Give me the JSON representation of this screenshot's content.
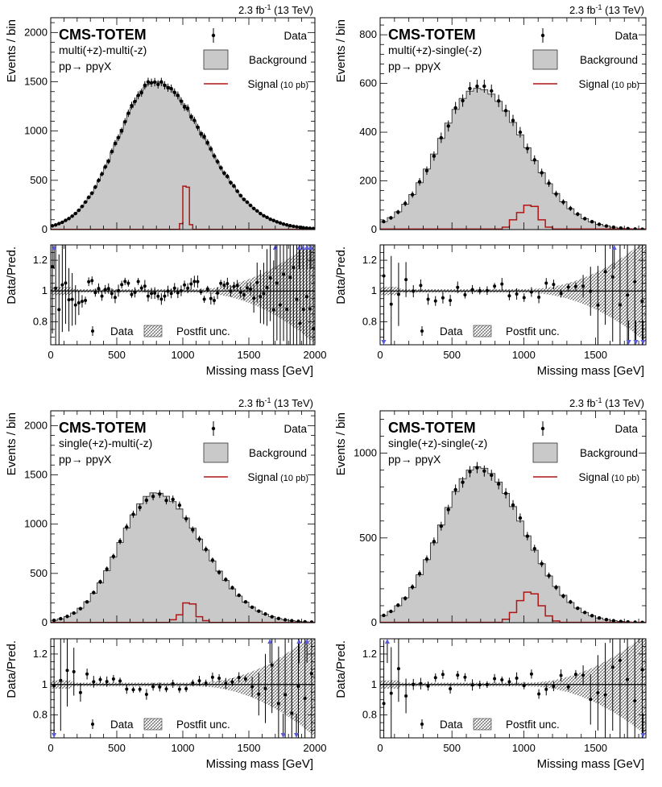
{
  "common": {
    "experiment": "CMS-TOTEM",
    "process": "pp→ ppγX",
    "lumi_main": "2.3 fb",
    "lumi_exp": "-1",
    "lumi_energy": "(13 TeV)",
    "xlabel": "Missing mass [GeV]",
    "ylabel_top": "Events / bin",
    "ylabel_ratio": "Data/Pred.",
    "legend": {
      "data": "Data",
      "background": "Background",
      "signal": "Signal",
      "signal_note": "(10 pb)",
      "ratio_data": "Data",
      "postfit": "Postfit unc."
    },
    "colors": {
      "background": "#c9c9c9",
      "signal": "#b01515",
      "arrow": "#5b5bd6",
      "data": "#000000"
    }
  },
  "chart_data": [
    {
      "type": "bar",
      "title": "multi(+z)-multi(-z)",
      "xlim": [
        0,
        2000
      ],
      "ylim": [
        0,
        2150
      ],
      "xticks": [
        0,
        500,
        1000,
        1500,
        2000
      ],
      "yticks": [
        0,
        500,
        1000,
        1500,
        2000
      ],
      "ratio_ylim": [
        0.65,
        1.3
      ],
      "ratio_yticks": [
        0.8,
        1,
        1.2
      ],
      "bin_width": 25,
      "background": {
        "mean": 790,
        "sigma": 330,
        "peak": 1500,
        "rise": 1.15
      },
      "signal": {
        "start": 975,
        "width": 25,
        "values": [
          60,
          440,
          430,
          50
        ]
      },
      "data_scatter": 0.02,
      "ratio_points": 80,
      "ratio_band_growth": 0.33,
      "ratio_arrows_up": [
        25,
        1700,
        1880,
        1910,
        1940,
        1970
      ],
      "ratio_arrows_down": []
    },
    {
      "type": "bar",
      "title": "multi(+z)-single(-z)",
      "xlim": [
        0,
        1850
      ],
      "ylim": [
        0,
        870
      ],
      "xticks": [
        0,
        500,
        1000,
        1500
      ],
      "yticks": [
        0,
        200,
        400,
        600,
        800
      ],
      "ratio_ylim": [
        0.65,
        1.3
      ],
      "ratio_yticks": [
        0.8,
        1,
        1.2
      ],
      "bin_width": 50,
      "background": {
        "mean": 680,
        "sigma": 300,
        "peak": 580,
        "rise": 1.1
      },
      "signal": {
        "start": 850,
        "width": 50,
        "values": [
          10,
          40,
          70,
          100,
          95,
          40,
          10
        ]
      },
      "data_scatter": 0.03,
      "ratio_points": 36,
      "ratio_band_growth": 0.32,
      "ratio_arrows_up": [
        1630
      ],
      "ratio_arrows_down": [
        25,
        1730,
        1780,
        1830
      ]
    },
    {
      "type": "bar",
      "title": "single(+z)-multi(-z)",
      "xlim": [
        0,
        2000
      ],
      "ylim": [
        0,
        2150
      ],
      "xticks": [
        0,
        500,
        1000,
        1500,
        2000
      ],
      "yticks": [
        0,
        500,
        1000,
        1500,
        2000
      ],
      "ratio_ylim": [
        0.65,
        1.3
      ],
      "ratio_yticks": [
        0.8,
        1,
        1.2
      ],
      "bin_width": 50,
      "background": {
        "mean": 790,
        "sigma": 310,
        "peak": 1320,
        "rise": 1.15
      },
      "signal": {
        "start": 900,
        "width": 50,
        "values": [
          30,
          80,
          200,
          190,
          60,
          20
        ]
      },
      "data_scatter": 0.035,
      "ratio_points": 40,
      "ratio_band_growth": 0.33,
      "ratio_arrows_up": [
        1660,
        1880,
        1940
      ],
      "ratio_arrows_down": [
        25,
        1760,
        1860
      ]
    },
    {
      "type": "bar",
      "title": "single(+z)-single(-z)",
      "xlim": [
        0,
        1850
      ],
      "ylim": [
        0,
        1250
      ],
      "xticks": [
        0,
        500,
        1000,
        1500
      ],
      "yticks": [
        0,
        500,
        1000
      ],
      "ratio_ylim": [
        0.65,
        1.3
      ],
      "ratio_yticks": [
        0.8,
        1,
        1.2
      ],
      "bin_width": 50,
      "background": {
        "mean": 680,
        "sigma": 290,
        "peak": 920,
        "rise": 1.1
      },
      "signal": {
        "start": 850,
        "width": 50,
        "values": [
          20,
          60,
          130,
          180,
          170,
          100,
          40,
          10
        ]
      },
      "data_scatter": 0.03,
      "ratio_points": 36,
      "ratio_band_growth": 0.32,
      "ratio_arrows_up": [
        50
      ],
      "ratio_arrows_down": [
        1830
      ]
    }
  ]
}
